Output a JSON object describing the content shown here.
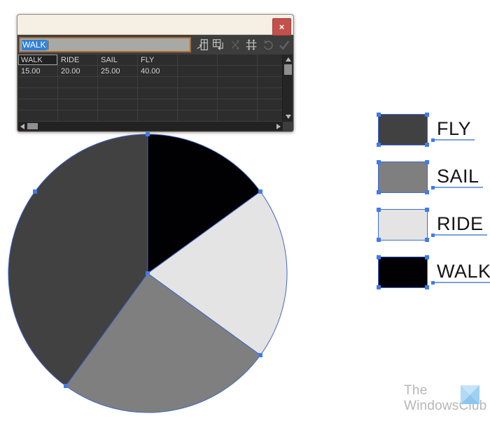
{
  "graph_window": {
    "close_label": "×",
    "entry": {
      "value": "WALK"
    },
    "toolbar": [
      {
        "name": "import-data",
        "enabled": true
      },
      {
        "name": "transpose",
        "enabled": true
      },
      {
        "name": "switch-xy",
        "enabled": false
      },
      {
        "name": "cell-style",
        "enabled": true
      },
      {
        "name": "revert",
        "enabled": false
      },
      {
        "name": "apply",
        "enabled": false
      }
    ],
    "table": {
      "columns": 7,
      "rows": 6,
      "header_row": [
        "WALK",
        "RIDE",
        "SAIL",
        "FLY",
        "",
        "",
        ""
      ],
      "value_row": [
        "15.00",
        "20.00",
        "25.00",
        "40.00",
        "",
        "",
        ""
      ],
      "selected_cell": {
        "row": 0,
        "col": 0
      }
    }
  },
  "chart_data": {
    "type": "pie",
    "title": "",
    "categories": [
      "WALK",
      "RIDE",
      "SAIL",
      "FLY"
    ],
    "values": [
      15,
      20,
      25,
      40
    ],
    "start_angle_deg": 0,
    "direction": "clockwise",
    "slices": [
      {
        "label": "WALK",
        "value": 15,
        "color": "#010103"
      },
      {
        "label": "RIDE",
        "value": 20,
        "color": "#e4e4e4"
      },
      {
        "label": "SAIL",
        "value": 25,
        "color": "#7f7f7f"
      },
      {
        "label": "FLY",
        "value": 40,
        "color": "#414141"
      }
    ],
    "selection": {
      "stroke": "#4165c9",
      "anchor": "#3f7bed"
    }
  },
  "legend": {
    "items": [
      {
        "label": "FLY",
        "color": "#414141"
      },
      {
        "label": "SAIL",
        "color": "#7f7f7f"
      },
      {
        "label": "RIDE",
        "color": "#e4e4e4"
      },
      {
        "label": "WALK",
        "color": "#010103"
      }
    ]
  },
  "watermark": {
    "line1": "The",
    "line2": "WindowsClub"
  }
}
